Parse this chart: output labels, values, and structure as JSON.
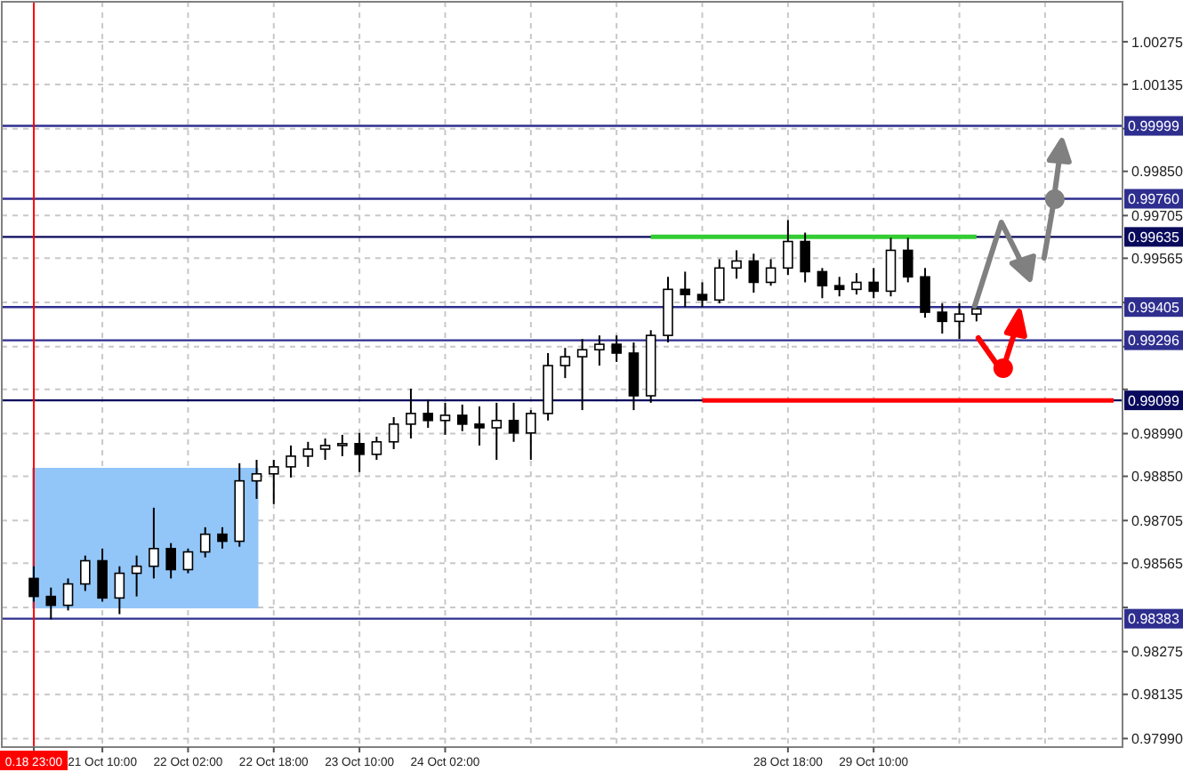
{
  "chart_data": {
    "type": "candlestick",
    "categories": [
      "0.18 23:00",
      null,
      null,
      null,
      "21 Oct 10:00",
      null,
      null,
      null,
      null,
      "22 Oct 02:00",
      null,
      null,
      null,
      null,
      "22 Oct 18:00",
      null,
      null,
      null,
      null,
      "23 Oct 10:00",
      null,
      null,
      null,
      null,
      "24 Oct 02:00",
      null,
      null,
      null,
      null,
      null,
      null,
      null,
      null,
      null,
      null,
      null,
      null,
      null,
      null,
      null,
      null,
      null,
      null,
      null,
      "28 Oct 18:00",
      null,
      null,
      null,
      null,
      "29 Oct 10:00",
      null,
      null,
      null,
      null,
      null,
      null,
      null,
      null,
      null,
      null,
      null,
      null,
      null,
      null
    ],
    "color": "#000000",
    "ohlc": [
      [
        0.98515,
        0.98555,
        0.98439,
        0.98456
      ],
      [
        0.98456,
        0.98485,
        0.98381,
        0.98427
      ],
      [
        0.98427,
        0.98515,
        0.9841,
        0.98497
      ],
      [
        0.98497,
        0.9859,
        0.98474,
        0.98573
      ],
      [
        0.98573,
        0.98613,
        0.98439,
        0.98451
      ],
      [
        0.98451,
        0.98555,
        0.98398,
        0.98532
      ],
      [
        0.98532,
        0.9859,
        0.98456,
        0.98555
      ],
      [
        0.98555,
        0.98747,
        0.98515,
        0.98613
      ],
      [
        0.98613,
        0.98631,
        0.98515,
        0.98544
      ],
      [
        0.98544,
        0.98613,
        0.98532,
        0.98602
      ],
      [
        0.98602,
        0.98683,
        0.98584,
        0.9866
      ],
      [
        0.9866,
        0.98683,
        0.98613,
        0.98637
      ],
      [
        0.98637,
        0.98893,
        0.98619,
        0.98835
      ],
      [
        0.98835,
        0.98904,
        0.98776,
        0.98858
      ],
      [
        0.98858,
        0.98904,
        0.98759,
        0.98881
      ],
      [
        0.98881,
        0.98951,
        0.98846,
        0.98916
      ],
      [
        0.98916,
        0.98963,
        0.98881,
        0.98939
      ],
      [
        0.98939,
        0.98974,
        0.98904,
        0.98951
      ],
      [
        0.98951,
        0.98986,
        0.98916,
        0.98957
      ],
      [
        0.98957,
        0.98992,
        0.98864,
        0.98922
      ],
      [
        0.98922,
        0.9898,
        0.98904,
        0.98963
      ],
      [
        0.98963,
        0.99044,
        0.98939,
        0.99021
      ],
      [
        0.99021,
        0.99137,
        0.98974,
        0.99056
      ],
      [
        0.99056,
        0.99102,
        0.99009,
        0.99033
      ],
      [
        0.99033,
        0.99091,
        0.98986,
        0.9905
      ],
      [
        0.9905,
        0.99085,
        0.98998,
        0.99021
      ],
      [
        0.99021,
        0.99079,
        0.98951,
        0.99009
      ],
      [
        0.99009,
        0.99091,
        0.98904,
        0.99033
      ],
      [
        0.99033,
        0.99091,
        0.98963,
        0.98992
      ],
      [
        0.98992,
        0.99067,
        0.98904,
        0.99056
      ],
      [
        0.99056,
        0.99254,
        0.99033,
        0.99213
      ],
      [
        0.99213,
        0.99271,
        0.99172,
        0.99242
      ],
      [
        0.99242,
        0.993,
        0.99067,
        0.99265
      ],
      [
        0.99265,
        0.99312,
        0.99213,
        0.99283
      ],
      [
        0.99283,
        0.99312,
        0.99225,
        0.99254
      ],
      [
        0.99254,
        0.99289,
        0.99067,
        0.99114
      ],
      [
        0.99114,
        0.99329,
        0.99091,
        0.99312
      ],
      [
        0.99312,
        0.99504,
        0.99289,
        0.99463
      ],
      [
        0.99463,
        0.99521,
        0.99405,
        0.99446
      ],
      [
        0.99446,
        0.99486,
        0.99405,
        0.99428
      ],
      [
        0.99428,
        0.99562,
        0.99417,
        0.99533
      ],
      [
        0.99533,
        0.99591,
        0.99498,
        0.99556
      ],
      [
        0.99556,
        0.9958,
        0.99452,
        0.99486
      ],
      [
        0.99486,
        0.99562,
        0.99475,
        0.99533
      ],
      [
        0.99533,
        0.9969,
        0.9951,
        0.9962
      ],
      [
        0.9962,
        0.99649,
        0.99486,
        0.99521
      ],
      [
        0.99521,
        0.99533,
        0.99434,
        0.99475
      ],
      [
        0.99475,
        0.99504,
        0.9944,
        0.99463
      ],
      [
        0.99463,
        0.99516,
        0.99446,
        0.99486
      ],
      [
        0.99486,
        0.99533,
        0.99434,
        0.99457
      ],
      [
        0.99457,
        0.99632,
        0.9944,
        0.99591
      ],
      [
        0.99591,
        0.99632,
        0.99486,
        0.99504
      ],
      [
        0.99504,
        0.99533,
        0.9937,
        0.99388
      ],
      [
        0.99388,
        0.99417,
        0.99318,
        0.99358
      ],
      [
        0.99358,
        0.99417,
        0.993,
        0.99382
      ],
      [
        0.99382,
        0.99417,
        0.99358,
        0.99399
      ],
      null,
      null,
      null,
      null,
      null,
      null,
      null,
      null
    ],
    "series": [
      {
        "type": "line",
        "color": "#33cc33",
        "values": [
          null,
          null,
          null,
          null,
          null,
          null,
          null,
          null,
          null,
          null,
          null,
          null,
          null,
          null,
          null,
          null,
          null,
          null,
          null,
          null,
          null,
          null,
          null,
          null,
          null,
          null,
          null,
          null,
          null,
          null,
          null,
          null,
          null,
          null,
          null,
          null,
          0.99635,
          0.99635,
          0.99635,
          0.99635,
          0.99635,
          0.99635,
          0.99635,
          0.99635,
          0.99635,
          0.99635,
          0.99635,
          0.99635,
          0.99635,
          0.99635,
          0.99635,
          0.99635,
          0.99635,
          0.99635,
          0.99635,
          0.99635,
          null,
          null,
          null,
          null,
          null,
          null,
          null,
          null
        ]
      },
      {
        "type": "line",
        "color": "#ff0000",
        "values": [
          null,
          null,
          null,
          null,
          null,
          null,
          null,
          null,
          null,
          null,
          null,
          null,
          null,
          null,
          null,
          null,
          null,
          null,
          null,
          null,
          null,
          null,
          null,
          null,
          null,
          null,
          null,
          null,
          null,
          null,
          null,
          null,
          null,
          null,
          null,
          null,
          null,
          null,
          null,
          0.99099,
          0.99099,
          0.99099,
          0.99099,
          0.99099,
          0.99099,
          0.99099,
          0.99099,
          0.99099,
          0.99099,
          0.99099,
          0.99099,
          0.99099,
          0.99099,
          0.99099,
          0.99099,
          0.99099,
          0.99099,
          0.99099,
          0.99099,
          0.99099,
          0.99099,
          0.99099,
          0.99099,
          0.99099
        ]
      }
    ],
    "ylim": [
      0.97962,
      1.00406
    ],
    "yticks": [
      1.00275,
      1.00135,
      {
        "value": 0.9999,
        "label": null
      },
      {
        "value": 0.9985,
        "label": "0.99850"
      },
      0.99705,
      0.99565,
      {
        "value": 0.9942,
        "label": null
      },
      {
        "value": 0.99275,
        "label": null
      },
      {
        "value": 0.99135,
        "label": null
      },
      {
        "value": 0.9899,
        "label": "0.98990"
      },
      {
        "value": 0.9885,
        "label": "0.98850"
      },
      0.98705,
      0.98565,
      {
        "value": 0.9842,
        "label": null
      },
      0.98275,
      0.98135,
      {
        "value": 0.9799,
        "label": "0.97990"
      }
    ],
    "grid": true,
    "ref_lines": [
      {
        "axis": "y",
        "value": 0.99999,
        "label": "0.99999",
        "color": "#2e2e8f"
      },
      {
        "axis": "y",
        "value": 0.9976,
        "label": "0.99760",
        "color": "#2e2e8f"
      },
      {
        "axis": "y",
        "value": 0.99635,
        "label": "0.99635",
        "color": "#0a0a5c"
      },
      {
        "axis": "y",
        "value": 0.99405,
        "label": "0.99405",
        "color": "#2e2e8f"
      },
      {
        "axis": "y",
        "value": 0.99296,
        "label": "0.99296",
        "color": "#2e2e8f"
      },
      {
        "axis": "y",
        "value": 0.99099,
        "label": "0.99099",
        "color": "#0a0a5c"
      },
      {
        "axis": "y",
        "value": 0.98383,
        "label": "0.98383",
        "color": "#2e2e8f"
      },
      {
        "axis": "x",
        "value": "0.18 23:00",
        "color": "#ff0000"
      }
    ]
  }
}
